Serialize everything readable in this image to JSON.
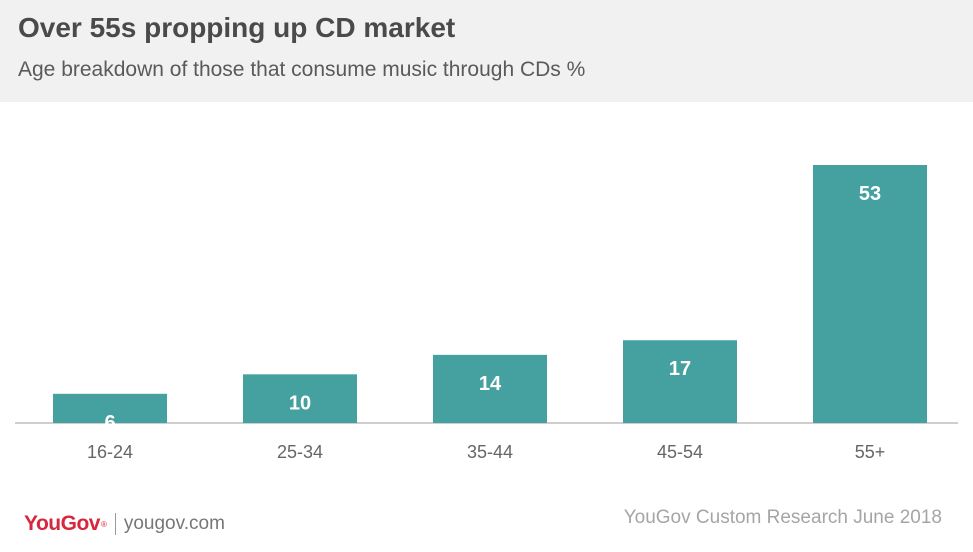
{
  "header": {
    "title": "Over 55s propping up CD market",
    "subtitle": "Age breakdown of those that consume music through CDs %"
  },
  "chart_data": {
    "type": "bar",
    "title": "Over 55s propping up CD market",
    "subtitle": "Age breakdown of those that consume music through CDs %",
    "categories": [
      "16-24",
      "25-34",
      "35-44",
      "45-54",
      "55+"
    ],
    "values": [
      6,
      10,
      14,
      17,
      53
    ],
    "xlabel": "",
    "ylabel": "",
    "ylim": [
      0,
      53
    ],
    "grid": false,
    "legend": "none",
    "bar_color": "#45a19f",
    "data_labels": true
  },
  "footer": {
    "logo": "YouGov",
    "url": "yougov.com",
    "source": "YouGov Custom Research June 2018"
  },
  "colors": {
    "bar": "#45a19f",
    "brand_red": "#d7263d",
    "header_bg": "#f1f1f1"
  }
}
